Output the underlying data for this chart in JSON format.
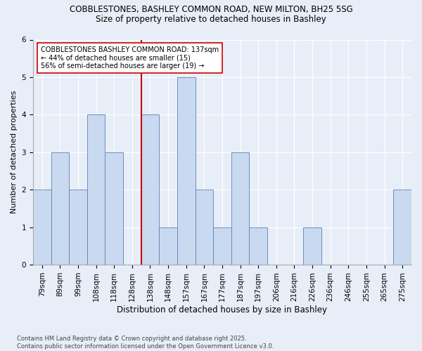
{
  "title1": "COBBLESTONES, BASHLEY COMMON ROAD, NEW MILTON, BH25 5SG",
  "title2": "Size of property relative to detached houses in Bashley",
  "xlabel": "Distribution of detached houses by size in Bashley",
  "ylabel": "Number of detached properties",
  "categories": [
    "79sqm",
    "89sqm",
    "99sqm",
    "108sqm",
    "118sqm",
    "128sqm",
    "138sqm",
    "148sqm",
    "157sqm",
    "167sqm",
    "177sqm",
    "187sqm",
    "197sqm",
    "206sqm",
    "216sqm",
    "226sqm",
    "236sqm",
    "246sqm",
    "255sqm",
    "265sqm",
    "275sqm"
  ],
  "values": [
    2,
    3,
    2,
    4,
    3,
    0,
    4,
    1,
    5,
    2,
    1,
    3,
    1,
    0,
    0,
    1,
    0,
    0,
    0,
    0,
    2
  ],
  "property_label": "COBBLESTONES BASHLEY COMMON ROAD: 137sqm",
  "annotation_line1": "← 44% of detached houses are smaller (15)",
  "annotation_line2": "56% of semi-detached houses are larger (19) →",
  "vline_category_index": 6,
  "bar_color": "#c9d9f0",
  "bar_edge_color": "#5b82b5",
  "vline_color": "#cc0000",
  "annotation_box_edge_color": "#cc0000",
  "background_color": "#e8eef8",
  "ylim": [
    0,
    6
  ],
  "yticks": [
    0,
    1,
    2,
    3,
    4,
    5,
    6
  ],
  "footer": "Contains HM Land Registry data © Crown copyright and database right 2025.\nContains public sector information licensed under the Open Government Licence v3.0.",
  "title1_fontsize": 8.5,
  "title2_fontsize": 8.5,
  "xlabel_fontsize": 8.5,
  "ylabel_fontsize": 8.0,
  "tick_fontsize": 7.5,
  "annotation_fontsize": 7.0,
  "footer_fontsize": 6.0
}
